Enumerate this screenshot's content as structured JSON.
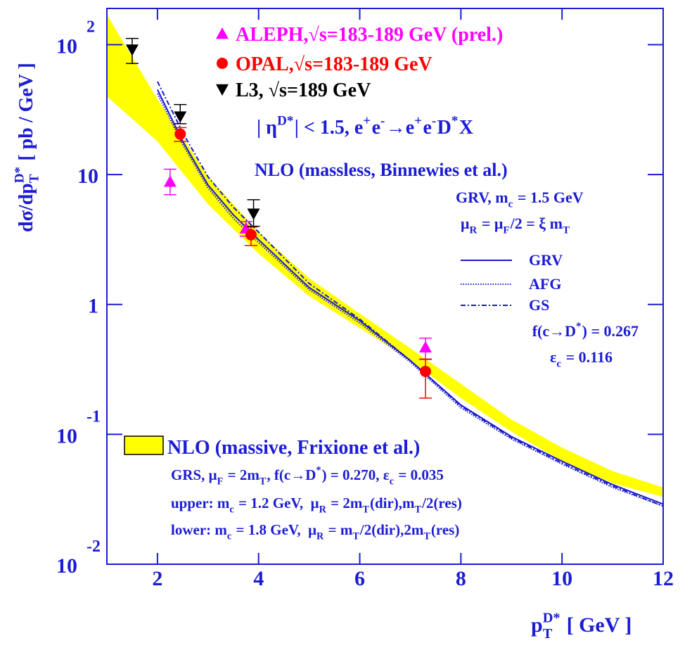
{
  "chart_data": {
    "type": "line",
    "log_y": true,
    "xlim": [
      1,
      12
    ],
    "xticks": [
      2,
      4,
      6,
      8,
      10,
      12
    ],
    "ylim": [
      0.01,
      190
    ],
    "yticks": [
      {
        "value": 0.01,
        "label": "10",
        "exponent": "-2"
      },
      {
        "value": 0.1,
        "label": "10",
        "exponent": "-1"
      },
      1,
      10,
      {
        "value": 100,
        "label": "10",
        "exponent": "2"
      }
    ],
    "axis_color": "#1c1cd4",
    "x_label": [
      "p",
      {
        "sup": "D*",
        "sub": "T"
      },
      " [ GeV ]"
    ],
    "y_label": [
      "dσ/dp",
      {
        "sup": "D*",
        "sub": "T"
      },
      " [ pb / GeV ]"
    ],
    "series": [
      {
        "name": "ALEPH,√s=183-189 GeV (prel.)",
        "color": "#ff00ff",
        "marker": "triangle-up",
        "x": [
          2.25,
          3.75,
          7.3
        ],
        "values": [
          8.8,
          3.85,
          0.467
        ],
        "errors_minus": [
          1.8,
          0.5,
          0.09
        ],
        "errors_plus": [
          2.2,
          0.5,
          0.083
        ]
      },
      {
        "name": "OPAL,√s=183-189 GeV",
        "color": "#ff0000",
        "marker": "circle",
        "x": [
          2.45,
          3.85,
          7.3
        ],
        "values": [
          20.5,
          3.44,
          0.305
        ],
        "errors_minus": [
          2.5,
          0.6,
          0.115
        ],
        "errors_plus": [
          2.5,
          0.5,
          0.075
        ]
      },
      {
        "name": "L3, √s=189 GeV",
        "color": "#000000",
        "marker": "triangle-down",
        "x": [
          1.5,
          2.45,
          3.9
        ],
        "values": [
          91.6,
          28,
          5.0
        ],
        "errors_minus": [
          20,
          3.4,
          1.0
        ],
        "errors_plus": [
          20,
          6.6,
          1.4
        ]
      }
    ],
    "curves": [
      {
        "name": "GRV",
        "color": "#1a1acc",
        "dash": "solid",
        "x": [
          2,
          2.5,
          3,
          3.5,
          4,
          5,
          6,
          7,
          8,
          9,
          10,
          11,
          12
        ],
        "values": [
          45,
          18,
          8.3,
          4.9,
          3.15,
          1.35,
          0.75,
          0.37,
          0.168,
          0.096,
          0.062,
          0.041,
          0.029
        ]
      },
      {
        "name": "AFG",
        "color": "#1a1acc",
        "dash": "dotted",
        "x": [
          2,
          2.5,
          3,
          3.5,
          4,
          5,
          6,
          7,
          8,
          9,
          10,
          11,
          12
        ],
        "values": [
          42,
          17,
          7.9,
          4.6,
          3.0,
          1.3,
          0.72,
          0.36,
          0.16,
          0.092,
          0.059,
          0.039,
          0.028
        ]
      },
      {
        "name": "GS",
        "color": "#1a1acc",
        "dash": "dashdot",
        "x": [
          2,
          2.5,
          3,
          3.5,
          4,
          5,
          6,
          7,
          8,
          9,
          10,
          11,
          12
        ],
        "values": [
          52,
          21,
          9.6,
          5.6,
          3.6,
          1.45,
          0.77,
          0.37,
          0.165,
          0.094,
          0.06,
          0.04,
          0.028
        ]
      }
    ],
    "band": {
      "name": "NLO (massive, Frixione et al.)",
      "color": "#ffff00",
      "x": [
        1,
        2,
        3,
        4,
        5,
        6,
        7,
        8,
        9,
        10,
        11,
        12
      ],
      "upper": [
        170,
        38,
        9.7,
        3.6,
        1.59,
        0.85,
        0.46,
        0.245,
        0.13,
        0.079,
        0.052,
        0.039
      ],
      "lower": [
        40,
        18,
        5.9,
        2.46,
        1.16,
        0.66,
        0.37,
        0.19,
        0.105,
        0.062,
        0.042,
        0.033
      ]
    },
    "annotations": [
      {
        "color": "#1c1cd4",
        "parts": [
          "| η",
          {
            "sup": "D*"
          },
          "| < 1.5, e",
          {
            "sup": "+"
          },
          "e",
          {
            "sup": "-"
          },
          "→e",
          {
            "sup": "+"
          },
          "e",
          {
            "sup": "-"
          },
          "D",
          {
            "sup": "*"
          },
          "X"
        ]
      },
      {
        "color": "#1c1cd4",
        "parts": [
          "NLO (massless, Binnewies et al.)"
        ]
      },
      {
        "color": "#1c1cd4",
        "parts": [
          "GRV, m",
          {
            "sub": "c"
          },
          " = 1.5 GeV"
        ]
      },
      {
        "color": "#1c1cd4",
        "parts": [
          "μ",
          {
            "sub": "R"
          },
          " = μ",
          {
            "sub": "F"
          },
          "/2 = ξ m",
          {
            "sub": "T"
          }
        ]
      },
      {
        "color": "#1c1cd4",
        "parts": [
          "f(c→D",
          {
            "sup": "*"
          },
          ") = 0.267"
        ]
      },
      {
        "color": "#1c1cd4",
        "parts": [
          "ε",
          {
            "sub": "c"
          },
          " = 0.116"
        ]
      },
      {
        "color": "#1c1cd4",
        "parts": [
          "GRS, μ",
          {
            "sub": "F"
          },
          " = 2m",
          {
            "sub": "T"
          },
          ", f(c→D",
          {
            "sup": "*"
          },
          ") = 0.270, ε",
          {
            "sub": "c"
          },
          " = 0.035"
        ]
      },
      {
        "color": "#1c1cd4",
        "parts": [
          "upper: m",
          {
            "sub": "c"
          },
          " = 1.2 GeV,  μ",
          {
            "sub": "R"
          },
          " = 2m",
          {
            "sub": "T"
          },
          "(dir),m",
          {
            "sub": "T"
          },
          "/2(res)"
        ]
      },
      {
        "color": "#1c1cd4",
        "parts": [
          "lower: m",
          {
            "sub": "c"
          },
          " = 1.8 GeV,  μ",
          {
            "sub": "R"
          },
          " = m",
          {
            "sub": "T"
          },
          "/2(dir),2m",
          {
            "sub": "T"
          },
          "(res)"
        ]
      }
    ]
  }
}
